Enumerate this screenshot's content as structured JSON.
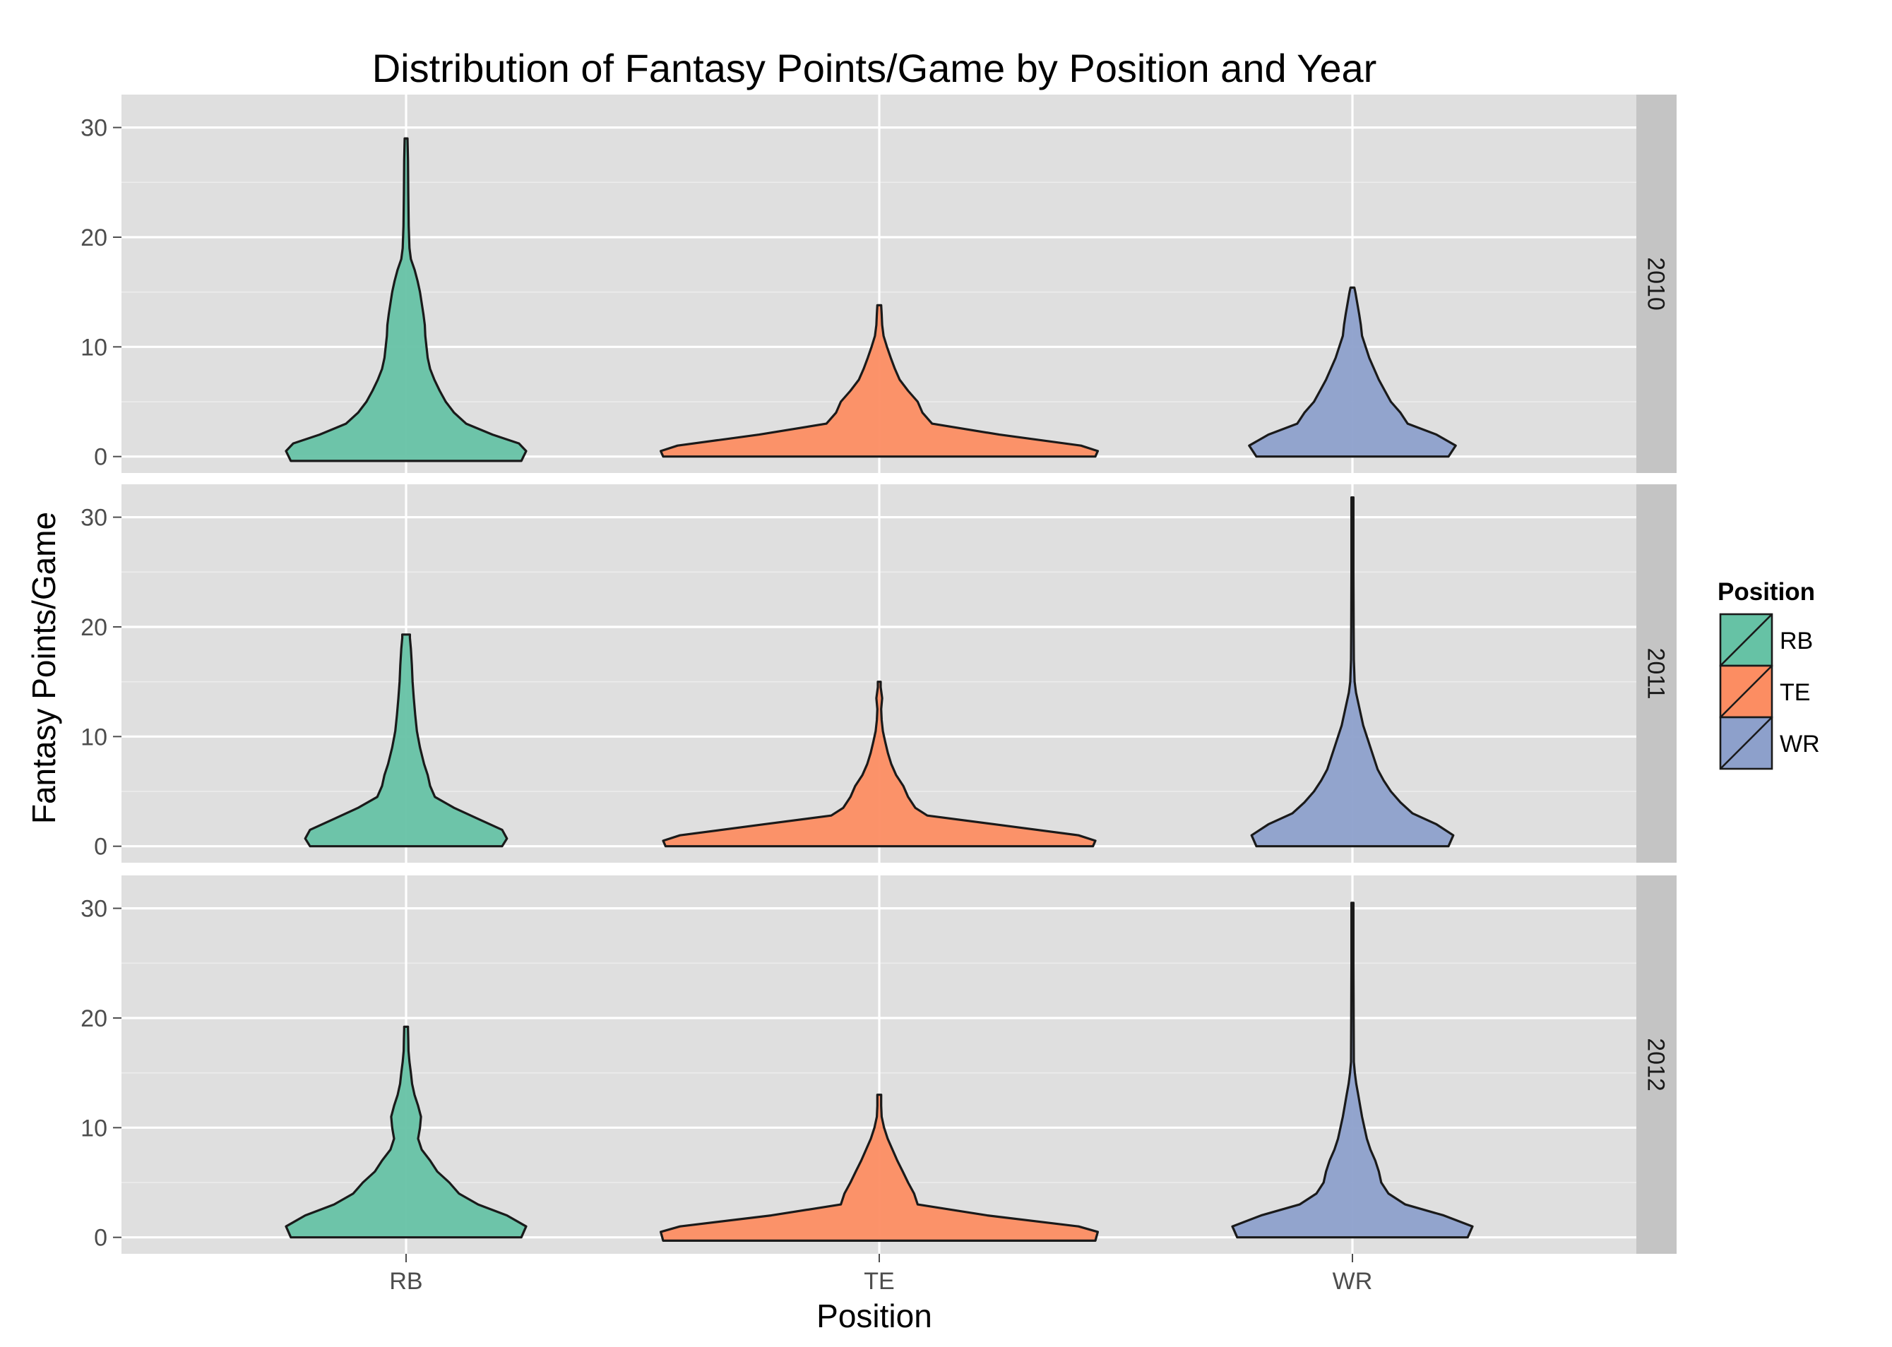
{
  "chart_data": {
    "type": "violin",
    "title": "Distribution of Fantasy Points/Game by Position and Year",
    "xlabel": "Position",
    "ylabel": "Fantasy Points/Game",
    "categories": [
      "RB",
      "TE",
      "WR"
    ],
    "facets": [
      "2010",
      "2011",
      "2012"
    ],
    "yticks": [
      0,
      10,
      20,
      30
    ],
    "ylim": [
      -1.5,
      33
    ],
    "grid": true,
    "legend": {
      "title": "Position",
      "placement": "right",
      "entries": [
        "RB",
        "TE",
        "WR"
      ]
    },
    "colors": {
      "RB": "#66c2a5",
      "TE": "#fc8d62",
      "WR": "#8da0cb",
      "panel_bg": "#dfdfdf",
      "strip_bg": "#c4c4c4",
      "grid": "#ffffff"
    },
    "series": [
      {
        "facet": "2010",
        "category": "RB",
        "min": -0.4,
        "max": 29,
        "profile": [
          [
            -0.4,
            0.48
          ],
          [
            0.5,
            0.5
          ],
          [
            1.2,
            0.47
          ],
          [
            2,
            0.36
          ],
          [
            3,
            0.25
          ],
          [
            4,
            0.2
          ],
          [
            5,
            0.165
          ],
          [
            6,
            0.14
          ],
          [
            7,
            0.118
          ],
          [
            8,
            0.1
          ],
          [
            9,
            0.09
          ],
          [
            10,
            0.085
          ],
          [
            11,
            0.08
          ],
          [
            12,
            0.078
          ],
          [
            13,
            0.072
          ],
          [
            14,
            0.065
          ],
          [
            15,
            0.058
          ],
          [
            16,
            0.048
          ],
          [
            17,
            0.036
          ],
          [
            18,
            0.02
          ],
          [
            19,
            0.014
          ],
          [
            21,
            0.011
          ],
          [
            24,
            0.009
          ],
          [
            27,
            0.008
          ],
          [
            29,
            0.006
          ]
        ]
      },
      {
        "facet": "2010",
        "category": "TE",
        "min": 0,
        "max": 13.8,
        "profile": [
          [
            0,
            0.9
          ],
          [
            0.5,
            0.91
          ],
          [
            1,
            0.84
          ],
          [
            2,
            0.5
          ],
          [
            3,
            0.22
          ],
          [
            4,
            0.18
          ],
          [
            5,
            0.16
          ],
          [
            6,
            0.12
          ],
          [
            7,
            0.085
          ],
          [
            8,
            0.065
          ],
          [
            9,
            0.048
          ],
          [
            10,
            0.032
          ],
          [
            11,
            0.018
          ],
          [
            12,
            0.012
          ],
          [
            13,
            0.01
          ],
          [
            13.8,
            0.008
          ]
        ]
      },
      {
        "facet": "2010",
        "category": "WR",
        "min": 0,
        "max": 15.4,
        "profile": [
          [
            0,
            0.4
          ],
          [
            1,
            0.43
          ],
          [
            2,
            0.35
          ],
          [
            3,
            0.23
          ],
          [
            4,
            0.2
          ],
          [
            5,
            0.16
          ],
          [
            6,
            0.135
          ],
          [
            7,
            0.11
          ],
          [
            8,
            0.09
          ],
          [
            9,
            0.07
          ],
          [
            10,
            0.055
          ],
          [
            11,
            0.04
          ],
          [
            12,
            0.035
          ],
          [
            13,
            0.028
          ],
          [
            14,
            0.02
          ],
          [
            15,
            0.012
          ],
          [
            15.4,
            0.008
          ]
        ]
      },
      {
        "facet": "2011",
        "category": "RB",
        "min": 0,
        "max": 19.3,
        "profile": [
          [
            0,
            0.4
          ],
          [
            0.7,
            0.42
          ],
          [
            1.5,
            0.4
          ],
          [
            2.5,
            0.3
          ],
          [
            3.5,
            0.2
          ],
          [
            4.5,
            0.12
          ],
          [
            5.5,
            0.1
          ],
          [
            6.5,
            0.09
          ],
          [
            7.5,
            0.075
          ],
          [
            9,
            0.058
          ],
          [
            10.5,
            0.045
          ],
          [
            12,
            0.038
          ],
          [
            13.5,
            0.032
          ],
          [
            15,
            0.027
          ],
          [
            16.5,
            0.024
          ],
          [
            18,
            0.02
          ],
          [
            19,
            0.016
          ],
          [
            19.3,
            0.016
          ]
        ]
      },
      {
        "facet": "2011",
        "category": "TE",
        "min": 0,
        "max": 15,
        "profile": [
          [
            0,
            0.89
          ],
          [
            0.5,
            0.9
          ],
          [
            1,
            0.83
          ],
          [
            2,
            0.48
          ],
          [
            2.8,
            0.2
          ],
          [
            3.5,
            0.15
          ],
          [
            4.5,
            0.12
          ],
          [
            5.5,
            0.1
          ],
          [
            6.5,
            0.07
          ],
          [
            7.5,
            0.05
          ],
          [
            8.5,
            0.036
          ],
          [
            9.5,
            0.025
          ],
          [
            10.5,
            0.015
          ],
          [
            11.5,
            0.01
          ],
          [
            12.5,
            0.008
          ],
          [
            13.5,
            0.012
          ],
          [
            14.5,
            0.006
          ],
          [
            15,
            0.006
          ]
        ]
      },
      {
        "facet": "2011",
        "category": "WR",
        "min": 0,
        "max": 31.8,
        "profile": [
          [
            0,
            0.4
          ],
          [
            1,
            0.42
          ],
          [
            2,
            0.35
          ],
          [
            3,
            0.25
          ],
          [
            4,
            0.2
          ],
          [
            5,
            0.16
          ],
          [
            6,
            0.13
          ],
          [
            7,
            0.105
          ],
          [
            8,
            0.09
          ],
          [
            9,
            0.075
          ],
          [
            10,
            0.06
          ],
          [
            11,
            0.045
          ],
          [
            12,
            0.035
          ],
          [
            13,
            0.025
          ],
          [
            14,
            0.015
          ],
          [
            15,
            0.009
          ],
          [
            17,
            0.006
          ],
          [
            20,
            0.005
          ],
          [
            25,
            0.004
          ],
          [
            30,
            0.004
          ],
          [
            31.8,
            0.004
          ]
        ]
      },
      {
        "facet": "2012",
        "category": "RB",
        "min": 0,
        "max": 19.2,
        "profile": [
          [
            0,
            0.48
          ],
          [
            1,
            0.5
          ],
          [
            2,
            0.42
          ],
          [
            3,
            0.3
          ],
          [
            4,
            0.22
          ],
          [
            5,
            0.18
          ],
          [
            6,
            0.13
          ],
          [
            7,
            0.1
          ],
          [
            8,
            0.065
          ],
          [
            9,
            0.05
          ],
          [
            10,
            0.058
          ],
          [
            11,
            0.062
          ],
          [
            12,
            0.05
          ],
          [
            13,
            0.035
          ],
          [
            14,
            0.025
          ],
          [
            15,
            0.02
          ],
          [
            16,
            0.014
          ],
          [
            17,
            0.01
          ],
          [
            18,
            0.009
          ],
          [
            19,
            0.008
          ],
          [
            19.2,
            0.008
          ]
        ]
      },
      {
        "facet": "2012",
        "category": "TE",
        "min": -0.3,
        "max": 13,
        "profile": [
          [
            -0.3,
            0.9
          ],
          [
            0.5,
            0.91
          ],
          [
            1,
            0.83
          ],
          [
            2,
            0.45
          ],
          [
            3,
            0.16
          ],
          [
            4,
            0.145
          ],
          [
            5,
            0.12
          ],
          [
            6,
            0.098
          ],
          [
            7,
            0.075
          ],
          [
            8,
            0.055
          ],
          [
            9,
            0.035
          ],
          [
            10,
            0.02
          ],
          [
            11,
            0.01
          ],
          [
            12,
            0.008
          ],
          [
            13,
            0.008
          ]
        ]
      },
      {
        "facet": "2012",
        "category": "WR",
        "min": 0,
        "max": 30.5,
        "profile": [
          [
            0,
            0.48
          ],
          [
            1,
            0.5
          ],
          [
            2,
            0.38
          ],
          [
            3,
            0.22
          ],
          [
            4,
            0.15
          ],
          [
            5,
            0.12
          ],
          [
            6,
            0.11
          ],
          [
            7,
            0.095
          ],
          [
            8,
            0.075
          ],
          [
            9,
            0.06
          ],
          [
            10,
            0.05
          ],
          [
            11,
            0.04
          ],
          [
            12,
            0.032
          ],
          [
            13,
            0.024
          ],
          [
            14,
            0.016
          ],
          [
            15,
            0.01
          ],
          [
            16,
            0.006
          ],
          [
            20,
            0.005
          ],
          [
            25,
            0.004
          ],
          [
            30,
            0.004
          ],
          [
            30.5,
            0.004
          ]
        ]
      }
    ]
  }
}
